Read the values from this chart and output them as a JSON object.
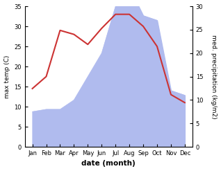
{
  "months": [
    "Jan",
    "Feb",
    "Mar",
    "Apr",
    "May",
    "Jun",
    "Jul",
    "Aug",
    "Sep",
    "Oct",
    "Nov",
    "Dec"
  ],
  "temperature": [
    14.5,
    17.5,
    29.0,
    28.0,
    25.5,
    29.5,
    33.0,
    33.0,
    30.0,
    25.0,
    13.0,
    11.0
  ],
  "precipitation": [
    7.5,
    8.0,
    8.0,
    10.0,
    15.0,
    20.0,
    30.0,
    34.0,
    28.0,
    27.0,
    12.0,
    11.0
  ],
  "temp_color": "#cc3333",
  "precip_color": "#b0bbee",
  "temp_ylim": [
    0,
    35
  ],
  "precip_ylim": [
    0,
    30
  ],
  "temp_yticks": [
    0,
    5,
    10,
    15,
    20,
    25,
    30,
    35
  ],
  "precip_yticks": [
    0,
    5,
    10,
    15,
    20,
    25,
    30
  ],
  "xlabel": "date (month)",
  "ylabel_left": "max temp (C)",
  "ylabel_right": "med. precipitation (kg/m2)",
  "bg_color": "#ffffff",
  "fig_width": 3.18,
  "fig_height": 2.47,
  "dpi": 100
}
